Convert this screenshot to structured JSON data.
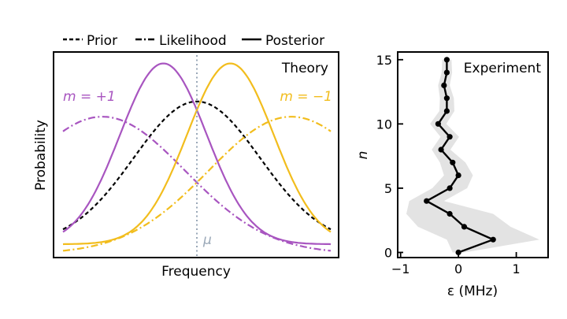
{
  "chart_data": [
    {
      "type": "line",
      "title": "",
      "xlabel": "Frequency",
      "ylabel": "Probability",
      "panel_label": "Theory",
      "legend": {
        "placement": "top-outside",
        "entries": [
          {
            "label": "Prior",
            "style": "dashed",
            "color": "#000000"
          },
          {
            "label": "Likelihood",
            "style": "dashdot",
            "color": "#000000"
          },
          {
            "label": "Posterior",
            "style": "solid",
            "color": "#000000"
          }
        ]
      },
      "annotations": [
        {
          "text": "m = +1",
          "color": "#a855c0"
        },
        {
          "text": "m = −1",
          "color": "#f2bd1d"
        },
        {
          "text": "μ",
          "color": "#9aa8b8"
        }
      ],
      "mu_x": 0,
      "xlim": [
        -3.4,
        3.4
      ],
      "ylim": [
        0,
        1.08
      ],
      "xticks_shown": false,
      "yticks_shown": false,
      "grid": false,
      "series": [
        {
          "name": "Prior",
          "color": "#000000",
          "style": "dashed",
          "center": 0,
          "sigma": 1.6,
          "amplitude": 0.75,
          "baseline": 0.07
        },
        {
          "name": "Likelihood (m = +1)",
          "color": "#a855c0",
          "style": "dashdot",
          "center": -2.4,
          "sigma": 2.1,
          "amplitude": 0.72,
          "baseline": 0.02
        },
        {
          "name": "Likelihood (m = −1)",
          "color": "#f2bd1d",
          "style": "dashdot",
          "center": 2.4,
          "sigma": 2.1,
          "amplitude": 0.72,
          "baseline": 0.02
        },
        {
          "name": "Posterior (m = +1)",
          "color": "#a855c0",
          "style": "solid",
          "center": -0.85,
          "sigma": 1.1,
          "amplitude": 0.95,
          "baseline": 0.07
        },
        {
          "name": "Posterior (m = −1)",
          "color": "#f2bd1d",
          "style": "solid",
          "center": 0.85,
          "sigma": 1.1,
          "amplitude": 0.95,
          "baseline": 0.07
        }
      ]
    },
    {
      "type": "line",
      "title": "",
      "panel_label": "Experiment",
      "xlabel": "ε (MHz)",
      "ylabel": "n",
      "xlim": [
        -1.05,
        1.55
      ],
      "ylim": [
        -0.4,
        15.6
      ],
      "xticks": [
        -1,
        0,
        1
      ],
      "xtick_labels": [
        "−1",
        "0",
        "1"
      ],
      "yticks": [
        0,
        5,
        10,
        15
      ],
      "ytick_labels": [
        "0",
        "5",
        "10",
        "15"
      ],
      "grid": false,
      "band_color": "#e3e3e3",
      "line_color": "#000000",
      "series": [
        {
          "name": "",
          "n": [
            0,
            1,
            2,
            3,
            4,
            5,
            6,
            7,
            8,
            9,
            10,
            11,
            12,
            13,
            14,
            15
          ],
          "values": [
            0.0,
            0.6,
            0.1,
            -0.15,
            -0.55,
            -0.15,
            0.0,
            -0.1,
            -0.3,
            -0.15,
            -0.35,
            -0.2,
            -0.2,
            -0.25,
            -0.2,
            -0.2
          ],
          "band_halfwidth": [
            0.1,
            0.8,
            0.8,
            0.75,
            0.3,
            0.3,
            0.25,
            0.22,
            0.16,
            0.16,
            0.14,
            0.13,
            0.12,
            0.1,
            0.09,
            0.08
          ]
        }
      ]
    }
  ]
}
